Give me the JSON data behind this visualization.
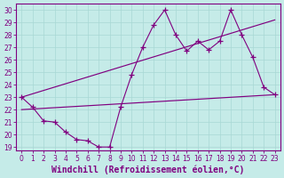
{
  "xlabel": "Windchill (Refroidissement éolien,°C)",
  "bg_color": "#c5ebe8",
  "line_color": "#800080",
  "grid_color": "#a8d8d4",
  "xlim": [
    -0.5,
    23.5
  ],
  "ylim": [
    18.7,
    30.5
  ],
  "yticks": [
    19,
    20,
    21,
    22,
    23,
    24,
    25,
    26,
    27,
    28,
    29,
    30
  ],
  "xticks": [
    0,
    1,
    2,
    3,
    4,
    5,
    6,
    7,
    8,
    9,
    10,
    11,
    12,
    13,
    14,
    15,
    16,
    17,
    18,
    19,
    20,
    21,
    22,
    23
  ],
  "series1_x": [
    0,
    1,
    2,
    3,
    4,
    5,
    6,
    7,
    8,
    9,
    10,
    11,
    12,
    13,
    14,
    15,
    16,
    17,
    18,
    19,
    20,
    21,
    22,
    23
  ],
  "series1_y": [
    23.0,
    22.2,
    21.1,
    21.0,
    20.2,
    19.6,
    19.5,
    19.0,
    19.0,
    22.2,
    24.8,
    27.0,
    28.8,
    30.0,
    28.0,
    26.7,
    27.5,
    26.8,
    27.5,
    30.0,
    28.0,
    26.2,
    23.8,
    23.2
  ],
  "series2_x": [
    0,
    23
  ],
  "series2_y": [
    22.0,
    23.2
  ],
  "series3_x": [
    0,
    23
  ],
  "series3_y": [
    23.0,
    29.2
  ],
  "tick_fontsize": 5.5,
  "xlabel_fontsize": 7.0
}
